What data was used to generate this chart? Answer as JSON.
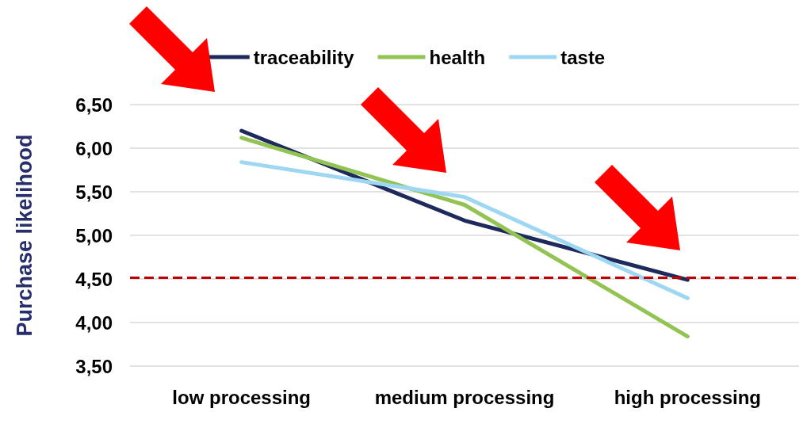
{
  "chart_data": {
    "type": "line",
    "ylabel": "Purchase likelihood",
    "categories": [
      "low processing",
      "medium processing",
      "high processing"
    ],
    "series": [
      {
        "name": "traceability",
        "color": "#1f2a5c",
        "values": [
          6.2,
          5.17,
          4.49
        ]
      },
      {
        "name": "health",
        "color": "#92c353",
        "values": [
          6.12,
          5.35,
          3.84
        ]
      },
      {
        "name": "taste",
        "color": "#9dd7f2",
        "values": [
          5.84,
          5.44,
          4.28
        ]
      }
    ],
    "ylim": [
      3.5,
      6.5
    ],
    "yticks": [
      {
        "value": 3.5,
        "label": "3,50"
      },
      {
        "value": 4,
        "label": "4,00"
      },
      {
        "value": 4.5,
        "label": "4,50"
      },
      {
        "value": 5,
        "label": "5,00"
      },
      {
        "value": 5.5,
        "label": "5,50"
      },
      {
        "value": 6,
        "label": "6,00"
      },
      {
        "value": 6.5,
        "label": "6,50"
      }
    ],
    "ref_lines": [
      {
        "axis": "y",
        "value": 4.52,
        "color": "#c00000",
        "line_style": "dashed"
      }
    ],
    "grid": "y",
    "legend": "top",
    "marker": "none",
    "line_style": "solid"
  }
}
